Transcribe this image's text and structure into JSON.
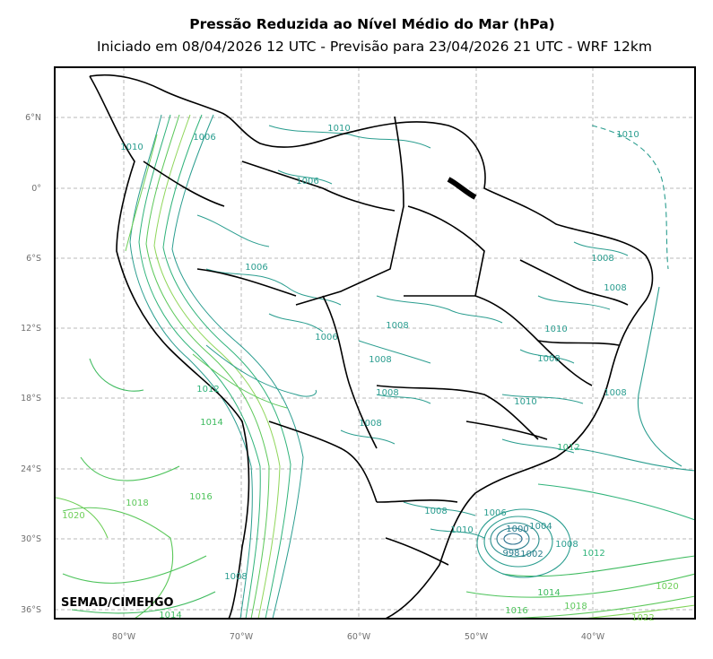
{
  "title": "Pressão Reduzida ao Nível Médio do Mar (hPa)",
  "subtitle": "Iniciado em 08/04/2026 12 UTC - Previsão para 23/04/2026 21 UTC - WRF 12km",
  "watermark": "SEMAD/CIMEHGO",
  "lat_ticks": [
    "6°N",
    "0°",
    "6°S",
    "12°S",
    "18°S",
    "24°S",
    "30°S",
    "36°S"
  ],
  "lon_ticks": [
    "80°W",
    "70°W",
    "60°W",
    "50°W",
    "40°W"
  ],
  "contour_labels": [
    {
      "text": "1010",
      "color": "#2a9d8f"
    },
    {
      "text": "1010",
      "color": "#2a9d8f"
    },
    {
      "text": "1006",
      "color": "#2a9d8f"
    },
    {
      "text": "1006",
      "color": "#2a9d8f"
    },
    {
      "text": "1010",
      "color": "#2a9d8f"
    },
    {
      "text": "1006",
      "color": "#2a9d8f"
    },
    {
      "text": "1008",
      "color": "#2a9d8f"
    },
    {
      "text": "1006",
      "color": "#2a9d8f"
    },
    {
      "text": "1008",
      "color": "#2a9d8f"
    },
    {
      "text": "1008",
      "color": "#2a9d8f"
    },
    {
      "text": "1008",
      "color": "#2a9d8f"
    },
    {
      "text": "1008",
      "color": "#2a9d8f"
    },
    {
      "text": "1008",
      "color": "#2a9d8f"
    },
    {
      "text": "1010",
      "color": "#2a9d8f"
    },
    {
      "text": "1008",
      "color": "#2a9d8f"
    },
    {
      "text": "1008",
      "color": "#2a9d8f"
    },
    {
      "text": "1010",
      "color": "#2a9d8f"
    },
    {
      "text": "1012",
      "color": "#2fb37a"
    },
    {
      "text": "1014",
      "color": "#3dba5e"
    },
    {
      "text": "1012",
      "color": "#2fb37a"
    },
    {
      "text": "1016",
      "color": "#4cc35a"
    },
    {
      "text": "1018",
      "color": "#5cc85a"
    },
    {
      "text": "1020",
      "color": "#6ecf58"
    },
    {
      "text": "1008",
      "color": "#2a9d8f"
    },
    {
      "text": "1006",
      "color": "#2a9d8f"
    },
    {
      "text": "1010",
      "color": "#2a9d8f"
    },
    {
      "text": "1000",
      "color": "#2a7f8e"
    },
    {
      "text": "1004",
      "color": "#2a8f8e"
    },
    {
      "text": "998",
      "color": "#2a7f8e"
    },
    {
      "text": "1002",
      "color": "#2a7f8e"
    },
    {
      "text": "1008",
      "color": "#2a9d8f"
    },
    {
      "text": "1012",
      "color": "#2fb37a"
    },
    {
      "text": "1014",
      "color": "#3dba5e"
    },
    {
      "text": "1016",
      "color": "#4cc35a"
    },
    {
      "text": "1018",
      "color": "#5cc85a"
    },
    {
      "text": "1020",
      "color": "#6ecf58"
    },
    {
      "text": "1014",
      "color": "#3dba5e"
    },
    {
      "text": "1008",
      "color": "#2a9d8f"
    },
    {
      "text": "1022",
      "color": "#7fd456"
    }
  ]
}
